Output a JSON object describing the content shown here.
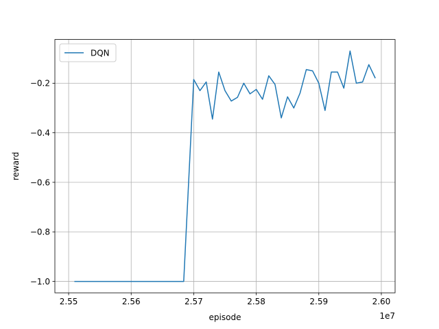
{
  "chart_data": {
    "type": "line",
    "title": "",
    "xlabel": "episode",
    "ylabel": "reward",
    "x_offset_label": "1e7",
    "xlim": [
      25.478,
      26.022
    ],
    "ylim": [
      -1.046,
      -0.0235
    ],
    "xticks": [
      25.5,
      25.6,
      25.7,
      25.8,
      25.9,
      26.0
    ],
    "xtick_labels": [
      "2.55",
      "2.56",
      "2.57",
      "2.58",
      "2.59",
      "2.60"
    ],
    "yticks": [
      -1.0,
      -0.8,
      -0.6,
      -0.4,
      -0.2
    ],
    "ytick_labels": [
      "−1.0",
      "−0.8",
      "−0.6",
      "−0.4",
      "−0.2"
    ],
    "grid": true,
    "legend_position": "top-left",
    "series": [
      {
        "name": "DQN",
        "color": "#1f77b4",
        "x": [
          25.51,
          25.684,
          25.7,
          25.71,
          25.72,
          25.73,
          25.74,
          25.75,
          25.76,
          25.77,
          25.78,
          25.79,
          25.8,
          25.81,
          25.82,
          25.83,
          25.84,
          25.85,
          25.86,
          25.87,
          25.88,
          25.89,
          25.9,
          25.91,
          25.92,
          25.93,
          25.94,
          25.95,
          25.96,
          25.97,
          25.98,
          25.99
        ],
        "y": [
          -1.0,
          -1.0,
          -0.185,
          -0.23,
          -0.195,
          -0.345,
          -0.155,
          -0.23,
          -0.272,
          -0.257,
          -0.2,
          -0.243,
          -0.225,
          -0.265,
          -0.17,
          -0.205,
          -0.34,
          -0.255,
          -0.3,
          -0.24,
          -0.145,
          -0.15,
          -0.2,
          -0.31,
          -0.155,
          -0.155,
          -0.22,
          -0.07,
          -0.2,
          -0.195,
          -0.125,
          -0.178
        ]
      }
    ]
  }
}
